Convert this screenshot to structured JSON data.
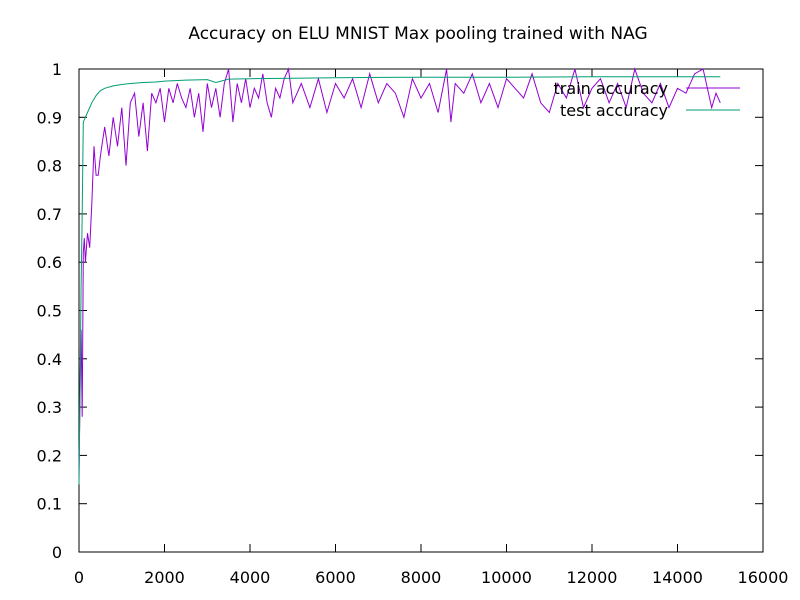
{
  "chart_data": {
    "type": "line",
    "title": "Accuracy on ELU MNIST Max pooling trained with NAG",
    "xlabel": "",
    "ylabel": "",
    "xlim": [
      0,
      16000
    ],
    "ylim": [
      0,
      1
    ],
    "x_ticks": [
      "0",
      "2000",
      "4000",
      "6000",
      "8000",
      "10000",
      "12000",
      "14000",
      "16000"
    ],
    "y_ticks": [
      "0",
      "0.1",
      "0.2",
      "0.3",
      "0.4",
      "0.5",
      "0.6",
      "0.7",
      "0.8",
      "0.9",
      "1"
    ],
    "grid": false,
    "legend_position": "top-right",
    "series": [
      {
        "name": "train accuracy",
        "color": "#9400d3",
        "x": [
          0,
          25,
          50,
          75,
          100,
          125,
          150,
          200,
          250,
          300,
          350,
          400,
          450,
          500,
          550,
          600,
          700,
          800,
          900,
          1000,
          1100,
          1200,
          1300,
          1400,
          1500,
          1600,
          1700,
          1800,
          1900,
          2000,
          2100,
          2200,
          2300,
          2400,
          2500,
          2600,
          2700,
          2800,
          2900,
          3000,
          3100,
          3200,
          3300,
          3400,
          3500,
          3600,
          3700,
          3800,
          3900,
          4000,
          4100,
          4200,
          4300,
          4400,
          4500,
          4600,
          4700,
          4800,
          4900,
          5000,
          5200,
          5400,
          5600,
          5800,
          6000,
          6200,
          6400,
          6600,
          6800,
          7000,
          7200,
          7400,
          7600,
          7800,
          8000,
          8200,
          8400,
          8600,
          8700,
          8800,
          9000,
          9200,
          9400,
          9600,
          9800,
          10000,
          10200,
          10400,
          10600,
          10800,
          11000,
          11200,
          11400,
          11600,
          11800,
          12000,
          12200,
          12400,
          12600,
          12800,
          13000,
          13200,
          13400,
          13600,
          13800,
          14000,
          14200,
          14400,
          14600,
          14700,
          14800,
          14900,
          15000
        ],
        "y": [
          0.16,
          0.34,
          0.46,
          0.28,
          0.62,
          0.65,
          0.6,
          0.66,
          0.63,
          0.72,
          0.84,
          0.78,
          0.78,
          0.82,
          0.85,
          0.88,
          0.82,
          0.9,
          0.84,
          0.92,
          0.8,
          0.93,
          0.95,
          0.86,
          0.93,
          0.83,
          0.95,
          0.93,
          0.96,
          0.89,
          0.96,
          0.93,
          0.97,
          0.94,
          0.92,
          0.96,
          0.9,
          0.95,
          0.87,
          0.97,
          0.92,
          0.96,
          0.9,
          0.97,
          1.0,
          0.89,
          0.97,
          0.93,
          0.98,
          0.92,
          0.96,
          0.94,
          0.99,
          0.93,
          0.9,
          0.96,
          0.94,
          0.98,
          1.0,
          0.93,
          0.97,
          0.92,
          0.98,
          0.91,
          0.97,
          0.94,
          0.98,
          0.92,
          0.99,
          0.93,
          0.97,
          0.95,
          0.9,
          0.98,
          0.94,
          0.97,
          0.91,
          1.0,
          0.89,
          0.97,
          0.95,
          0.99,
          0.93,
          0.97,
          0.92,
          0.98,
          0.96,
          0.94,
          0.99,
          0.93,
          0.91,
          0.97,
          0.94,
          1.0,
          0.92,
          0.96,
          0.98,
          0.93,
          0.97,
          0.92,
          1.0,
          0.95,
          0.93,
          0.97,
          0.92,
          0.96,
          0.95,
          0.99,
          1.0,
          0.96,
          0.92,
          0.95,
          0.93
        ]
      },
      {
        "name": "test accuracy",
        "color": "#009e73",
        "x": [
          0,
          25,
          50,
          75,
          100,
          150,
          200,
          300,
          400,
          500,
          600,
          800,
          1000,
          1200,
          1500,
          1800,
          2000,
          2500,
          3000,
          3200,
          3500,
          4000,
          5000,
          6000,
          8000,
          10000,
          12000,
          14000,
          15000
        ],
        "y": [
          0.14,
          0.35,
          0.55,
          0.7,
          0.89,
          0.9,
          0.91,
          0.93,
          0.945,
          0.955,
          0.96,
          0.965,
          0.968,
          0.97,
          0.972,
          0.973,
          0.975,
          0.977,
          0.978,
          0.972,
          0.979,
          0.98,
          0.981,
          0.982,
          0.983,
          0.983,
          0.984,
          0.984,
          0.984
        ]
      }
    ]
  }
}
